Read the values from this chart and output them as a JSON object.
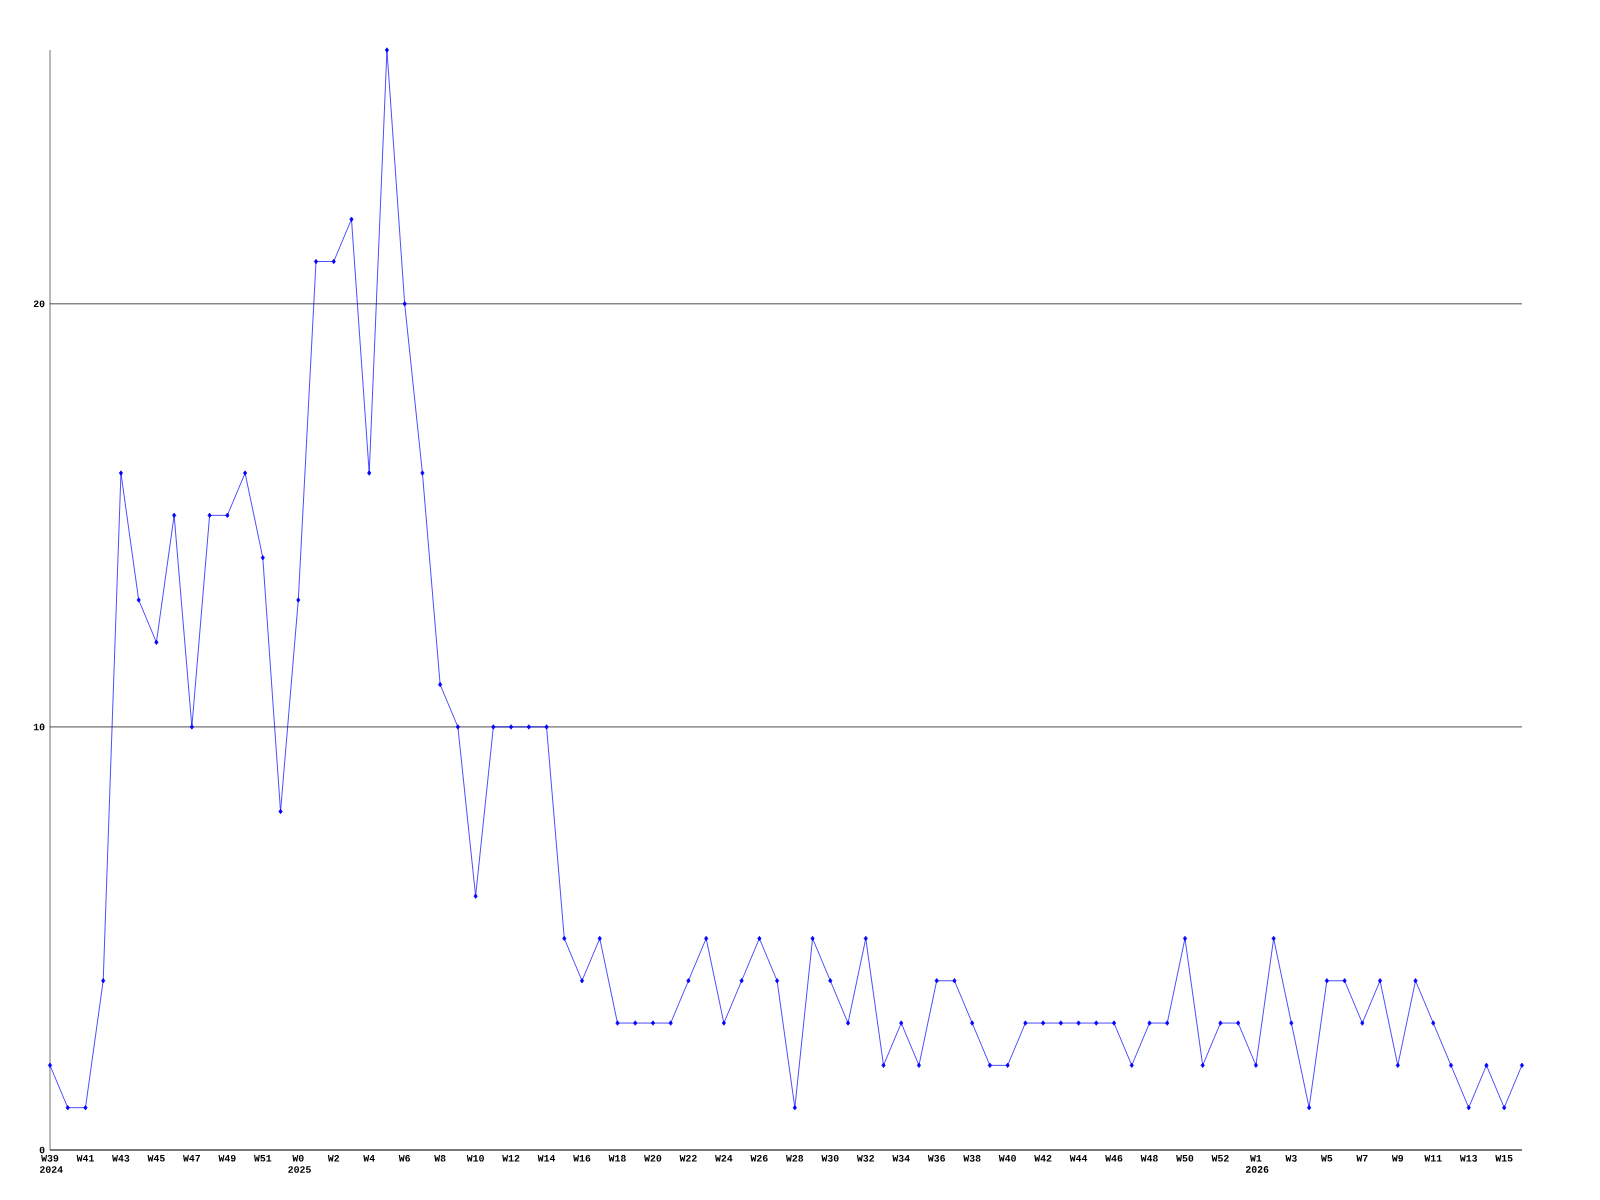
{
  "chart_data": {
    "type": "line",
    "categories": [
      "W39 2024",
      null,
      "W41",
      null,
      "W43",
      null,
      "W45",
      null,
      "W47",
      null,
      "W49",
      null,
      "W51",
      null,
      "W0 2025",
      null,
      "W2",
      null,
      "W4",
      null,
      "W6",
      null,
      "W8",
      null,
      "W10",
      null,
      "W12",
      null,
      "W14",
      null,
      "W16",
      null,
      "W18",
      null,
      "W20",
      null,
      "W22",
      null,
      "W24",
      null,
      "W26",
      null,
      "W28",
      null,
      "W30",
      null,
      "W32",
      null,
      "W34",
      null,
      "W36",
      null,
      "W38",
      null,
      "W40",
      null,
      "W42",
      null,
      "W44",
      null,
      "W46",
      null,
      "W48",
      null,
      "W50",
      null,
      "W52",
      null,
      "W1 2026",
      null,
      "W3",
      null,
      "W5",
      null,
      "W7",
      null,
      "W9",
      null,
      "W11",
      null,
      "W13",
      null,
      "W15",
      null
    ],
    "values": [
      2,
      1,
      1,
      4,
      16,
      13,
      12,
      15,
      10,
      15,
      15,
      16,
      14,
      8,
      13,
      21,
      21,
      22,
      16,
      26,
      20,
      16,
      11,
      10,
      6,
      10,
      10,
      10,
      10,
      5,
      4,
      5,
      3,
      3,
      3,
      3,
      4,
      5,
      3,
      4,
      5,
      4,
      1,
      5,
      4,
      3,
      5,
      2,
      3,
      2,
      4,
      4,
      3,
      2,
      2,
      3,
      3,
      3,
      3,
      3,
      3,
      2,
      3,
      3,
      5,
      2,
      3,
      3,
      2,
      5,
      3,
      1,
      4,
      4,
      3,
      4,
      2,
      4,
      3,
      2,
      1,
      2,
      1,
      2
    ],
    "color": "#0000ff",
    "ylim": [
      0,
      26
    ],
    "yticks": [
      0,
      10,
      20
    ],
    "grid": "y",
    "marker": "diamond",
    "line_style": "solid"
  }
}
